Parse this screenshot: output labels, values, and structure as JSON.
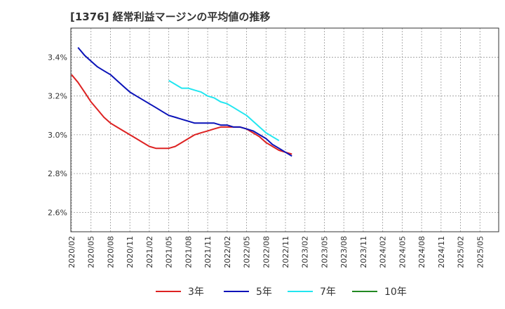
{
  "chart_data": {
    "type": "line",
    "title": "[1376]  経常利益マージンの平均値の推移",
    "ylim": [
      2.5,
      3.55
    ],
    "y_ticks": [
      {
        "value": 2.6,
        "label": "2.6%"
      },
      {
        "value": 2.8,
        "label": "2.8%"
      },
      {
        "value": 3.0,
        "label": "3.0%"
      },
      {
        "value": 3.2,
        "label": "3.2%"
      },
      {
        "value": 3.4,
        "label": "3.4%"
      }
    ],
    "x_labels": [
      "2020/02",
      "2020/05",
      "2020/08",
      "2020/11",
      "2021/02",
      "2021/05",
      "2021/08",
      "2021/11",
      "2022/02",
      "2022/05",
      "2022/08",
      "2022/11",
      "2023/02",
      "2023/05",
      "2023/08",
      "2023/11",
      "2024/02",
      "2024/05",
      "2024/08",
      "2024/11",
      "2025/02",
      "2025/05"
    ],
    "grid": true,
    "legend_position": "bottom",
    "series": [
      {
        "name": "3年",
        "color": "#dd2222",
        "values": [
          3.31,
          3.27,
          3.22,
          3.17,
          3.13,
          3.09,
          3.06,
          3.04,
          3.02,
          3.0,
          2.98,
          2.96,
          2.94,
          2.93,
          2.93,
          2.93,
          2.94,
          2.96,
          2.98,
          3.0,
          3.01,
          3.02,
          3.03,
          3.04,
          3.04,
          3.04,
          3.04,
          3.03,
          3.01,
          2.99,
          2.96,
          2.94,
          2.92,
          2.91,
          2.9
        ]
      },
      {
        "name": "5年",
        "color": "#0a12b8",
        "values": [
          null,
          3.45,
          3.41,
          3.38,
          3.35,
          3.33,
          3.31,
          3.28,
          3.25,
          3.22,
          3.2,
          3.18,
          3.16,
          3.14,
          3.12,
          3.1,
          3.09,
          3.08,
          3.07,
          3.06,
          3.06,
          3.06,
          3.06,
          3.05,
          3.05,
          3.04,
          3.04,
          3.03,
          3.02,
          3.0,
          2.98,
          2.95,
          2.93,
          2.91,
          2.89
        ]
      },
      {
        "name": "7年",
        "color": "#22e6f0",
        "values": [
          null,
          null,
          null,
          null,
          null,
          null,
          null,
          null,
          null,
          null,
          null,
          null,
          null,
          null,
          null,
          3.28,
          3.26,
          3.24,
          3.24,
          3.23,
          3.22,
          3.2,
          3.19,
          3.17,
          3.16,
          3.14,
          3.12,
          3.1,
          3.07,
          3.04,
          3.01,
          2.99,
          2.97
        ]
      },
      {
        "name": "10年",
        "color": "#228822",
        "values": []
      }
    ]
  }
}
